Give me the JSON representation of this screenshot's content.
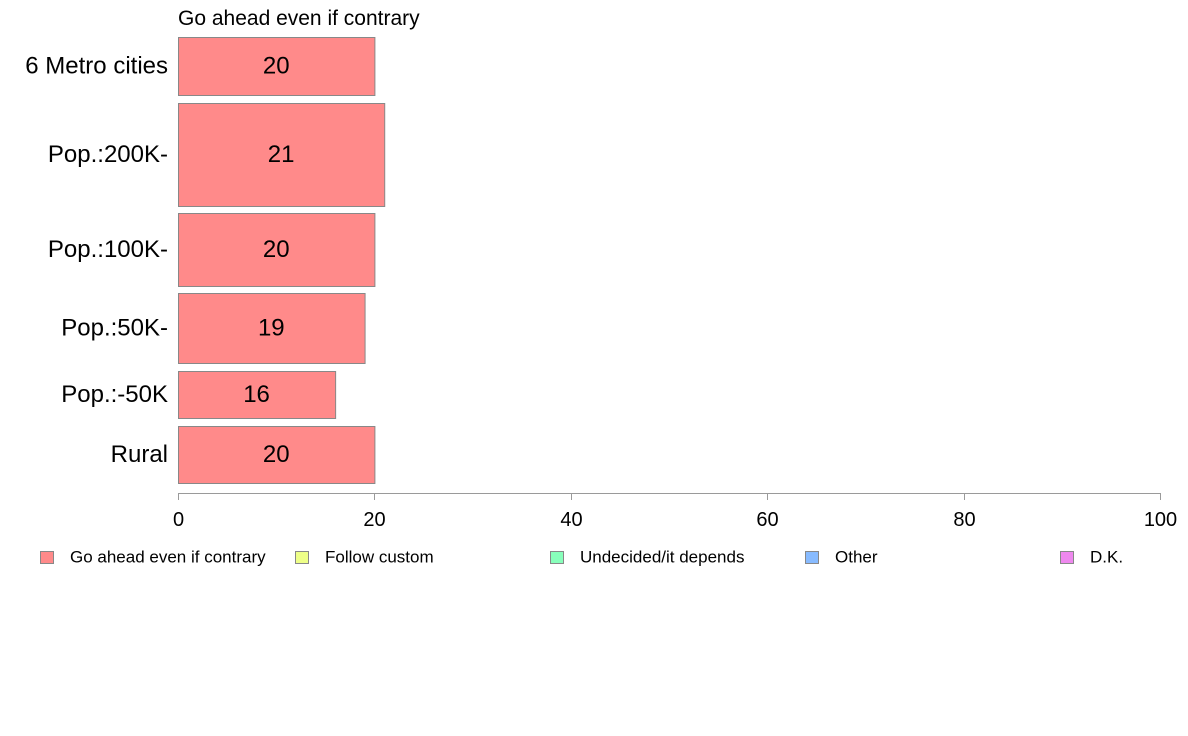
{
  "chart_data": {
    "type": "bar",
    "orientation": "horizontal",
    "title": "Go ahead even if contrary",
    "categories": [
      "6 Metro cities",
      "Pop.:200K-",
      "Pop.:100K-",
      "Pop.:50K-",
      "Pop.:-50K",
      "Rural"
    ],
    "series": [
      {
        "name": "Go ahead even if contrary",
        "color": "#ff8a8a",
        "values": [
          20,
          21,
          20,
          19,
          16,
          20
        ]
      }
    ],
    "xlim": [
      0,
      100
    ],
    "xticks": [
      0,
      20,
      40,
      60,
      80,
      100
    ],
    "grid": false,
    "legend_position": "bottom",
    "legend": [
      {
        "label": "Go ahead even if contrary",
        "color": "#ff8a8a"
      },
      {
        "label": "Follow custom",
        "color": "#eeff88"
      },
      {
        "label": "Undecided/it depends",
        "color": "#88ffbb"
      },
      {
        "label": "Other",
        "color": "#88bbff"
      },
      {
        "label": "D.K.",
        "color": "#ee88ee"
      }
    ]
  }
}
